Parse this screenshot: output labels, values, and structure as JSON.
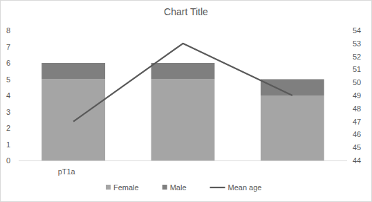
{
  "chart_data": {
    "type": "bar",
    "title": "Chart Title",
    "stacked": true,
    "grid": false,
    "legend": "bottom",
    "categories": [
      "pT1a",
      null,
      null
    ],
    "series": [
      {
        "name": "Female",
        "color": "#a5a5a5",
        "values": [
          5,
          5,
          4
        ]
      },
      {
        "name": "Male",
        "color": "#7f7f7f",
        "values": [
          1,
          1,
          1
        ]
      },
      {
        "name": "Mean age",
        "type": "line",
        "axis": "y2",
        "color": "#595959",
        "values": [
          47,
          53,
          49
        ]
      }
    ],
    "ylim": [
      0,
      8
    ],
    "yticks": [
      0,
      1,
      2,
      3,
      4,
      5,
      6,
      7,
      8
    ],
    "y2lim": [
      44,
      54
    ],
    "y2ticks": [
      44,
      45,
      46,
      47,
      48,
      49,
      50,
      51,
      52,
      53,
      54
    ]
  }
}
